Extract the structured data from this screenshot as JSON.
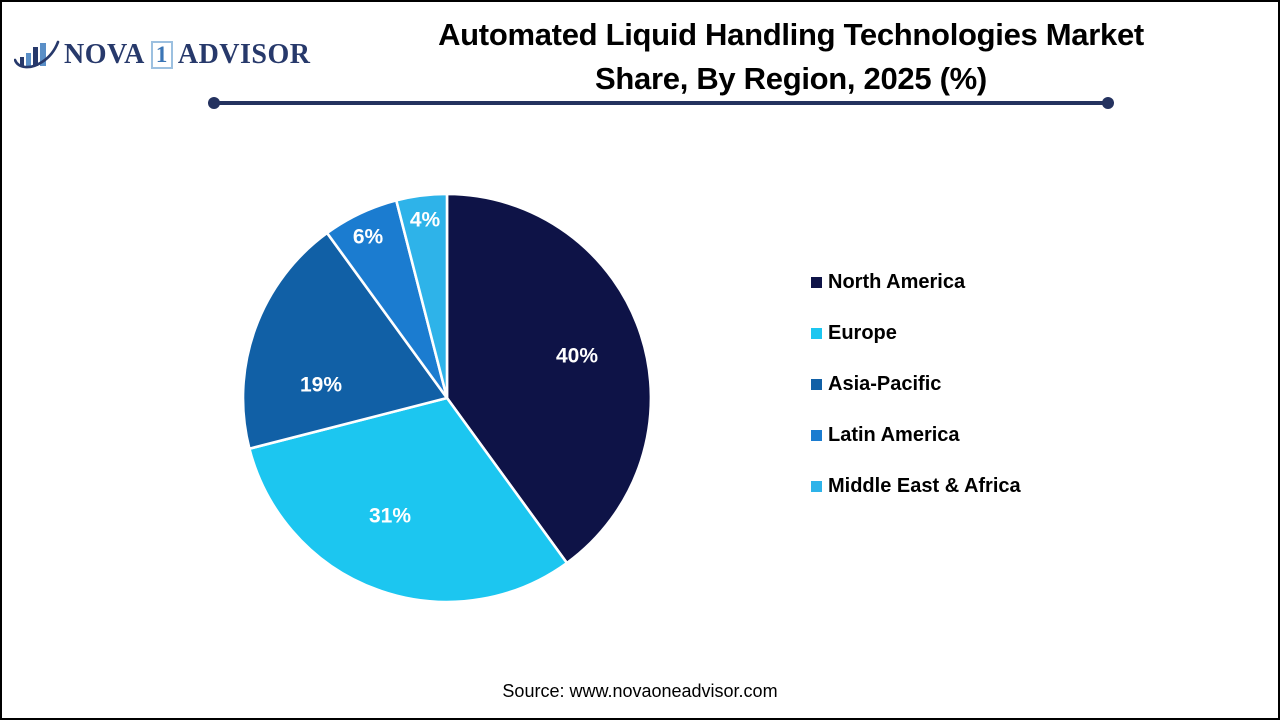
{
  "logo": {
    "icon": "ascending-bars-swoosh-icon",
    "brand_part1": "NOVA",
    "brand_number": "1",
    "brand_part2": "ADVISOR",
    "navy": "#27396b",
    "light_blue": "#5a8fc7"
  },
  "header": {
    "title_line1": "Automated Liquid Handling Technologies Market",
    "title_line2": "Share, By Region, 2025 (%)",
    "rule_color": "#24325f"
  },
  "chart_data": {
    "type": "pie",
    "title": "Automated Liquid Handling Technologies Market Share, By Region, 2025 (%)",
    "unit": "%",
    "start_angle": "12 o'clock",
    "direction": "clockwise",
    "slices": [
      {
        "label": "North America",
        "value": 40,
        "display": "40%",
        "color": "#0e1347"
      },
      {
        "label": "Europe",
        "value": 31,
        "display": "31%",
        "color": "#1cc6f0"
      },
      {
        "label": "Asia-Pacific",
        "value": 19,
        "display": "19%",
        "color": "#1160a6"
      },
      {
        "label": "Latin America",
        "value": 6,
        "display": "6%",
        "color": "#1b7cd0"
      },
      {
        "label": "Middle East & Africa",
        "value": 4,
        "display": "4%",
        "color": "#2eb3e9"
      }
    ],
    "slice_label_color": "#ffffff",
    "slice_border_color": "#ffffff",
    "legend_position": "right"
  },
  "footer": {
    "source": "Source: www.novaoneadvisor.com"
  }
}
